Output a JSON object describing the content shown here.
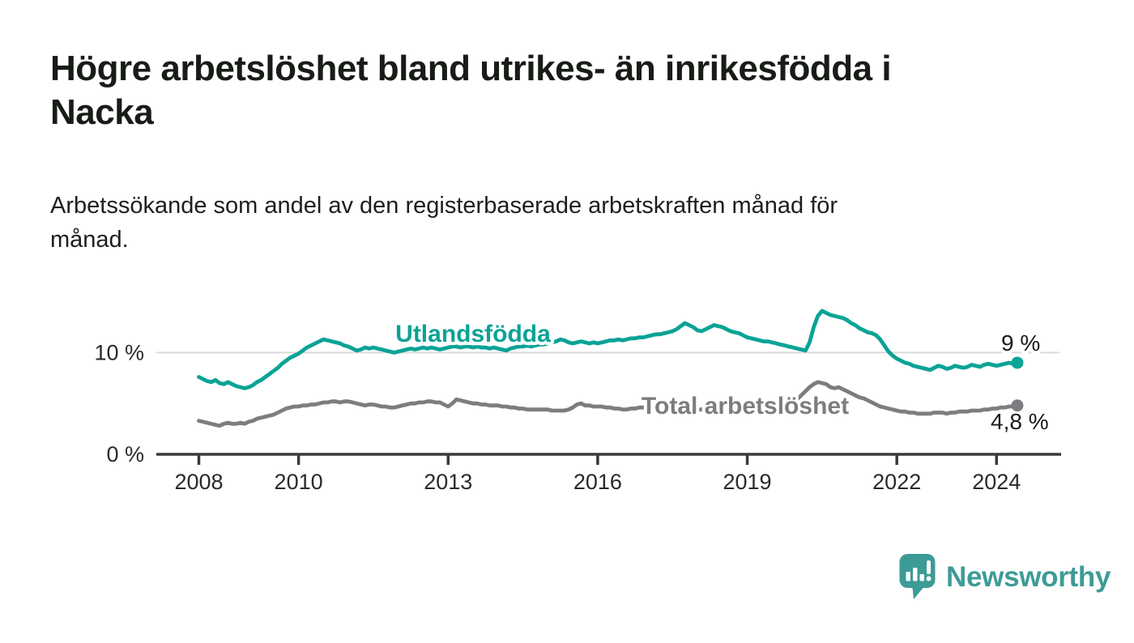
{
  "header": {
    "title": "Högre arbetslöshet bland utrikes- än inrikesfödda i Nacka",
    "title_line1": "Högre arbetslöshet bland utrikes- än inrikesfödda i",
    "title_line2": "Nacka",
    "subtitle": "Arbetssökande som andel av den registerbaserade arbetskraften månad för månad.",
    "subtitle_line1": "Arbetssökande som andel av den registerbaserade arbetskraften månad för",
    "subtitle_line2": "månad."
  },
  "footer": {
    "brand": "Newsworthy",
    "logo_icon": "speech-bubble-bar-chart-icon",
    "brand_color": "#3d9b96"
  },
  "colors": {
    "foreign_born_line": "#0aa396",
    "total_line": "#7d7d81",
    "axis": "#3a3a3a",
    "gridline": "#dbdbdb",
    "tick_label": "#2a2a2a",
    "end_label": "#1a1a1a"
  },
  "chart_data": {
    "type": "line",
    "title": "Högre arbetslöshet bland utrikes- än inrikesfödda i Nacka",
    "subtitle": "Arbetssökande som andel av den registerbaserade arbetskraften månad för månad.",
    "unit": "%",
    "x_interval": "monthly",
    "x_start": {
      "year": 2008,
      "month": 1
    },
    "x_end": {
      "year": 2024,
      "month": 6
    },
    "ylim": [
      0,
      16
    ],
    "grid": "horizontal-10-only",
    "legend_position": "inline-labels",
    "x_ticks": [
      {
        "year": 2008,
        "label": "2008"
      },
      {
        "year": 2010,
        "label": "2010"
      },
      {
        "year": 2013,
        "label": "2013"
      },
      {
        "year": 2016,
        "label": "2016"
      },
      {
        "year": 2019,
        "label": "2019"
      },
      {
        "year": 2022,
        "label": "2022"
      },
      {
        "year": 2024,
        "label": "2024"
      }
    ],
    "y_ticks": [
      {
        "value": 0,
        "label": "0 %"
      },
      {
        "value": 10,
        "label": "10 %"
      }
    ],
    "series": [
      {
        "name": "Utlandsfödda",
        "color": "#0aa396",
        "end_label": "9 %",
        "final_value": 9.0,
        "values": [
          7.6,
          7.4,
          7.2,
          7.1,
          7.3,
          7.0,
          6.9,
          7.1,
          6.9,
          6.7,
          6.6,
          6.5,
          6.6,
          6.8,
          7.1,
          7.3,
          7.6,
          7.9,
          8.2,
          8.5,
          8.9,
          9.2,
          9.5,
          9.7,
          9.9,
          10.2,
          10.5,
          10.7,
          10.9,
          11.1,
          11.3,
          11.2,
          11.1,
          11.0,
          10.9,
          10.7,
          10.6,
          10.4,
          10.2,
          10.3,
          10.5,
          10.4,
          10.5,
          10.4,
          10.3,
          10.2,
          10.1,
          10.0,
          10.1,
          10.2,
          10.3,
          10.4,
          10.3,
          10.4,
          10.5,
          10.4,
          10.5,
          10.4,
          10.3,
          10.4,
          10.5,
          10.6,
          10.6,
          10.5,
          10.6,
          10.6,
          10.5,
          10.6,
          10.5,
          10.5,
          10.4,
          10.5,
          10.4,
          10.3,
          10.2,
          10.4,
          10.5,
          10.6,
          10.6,
          10.7,
          10.6,
          10.7,
          10.8,
          10.8,
          10.9,
          11.0,
          11.1,
          11.3,
          11.2,
          11.0,
          10.9,
          11.0,
          11.1,
          11.0,
          10.9,
          11.0,
          10.9,
          11.0,
          11.1,
          11.2,
          11.2,
          11.3,
          11.2,
          11.3,
          11.4,
          11.4,
          11.5,
          11.5,
          11.6,
          11.7,
          11.8,
          11.8,
          11.9,
          12.0,
          12.1,
          12.3,
          12.6,
          12.9,
          12.7,
          12.5,
          12.2,
          12.1,
          12.3,
          12.5,
          12.7,
          12.6,
          12.5,
          12.3,
          12.1,
          12.0,
          11.9,
          11.7,
          11.5,
          11.4,
          11.3,
          11.2,
          11.1,
          11.1,
          11.0,
          10.9,
          10.8,
          10.7,
          10.6,
          10.5,
          10.4,
          10.3,
          10.2,
          11.0,
          12.5,
          13.6,
          14.1,
          13.9,
          13.7,
          13.6,
          13.5,
          13.4,
          13.2,
          12.9,
          12.7,
          12.4,
          12.2,
          12.0,
          11.9,
          11.7,
          11.3,
          10.7,
          10.1,
          9.7,
          9.4,
          9.2,
          9.0,
          8.9,
          8.7,
          8.6,
          8.5,
          8.4,
          8.3,
          8.5,
          8.7,
          8.6,
          8.4,
          8.5,
          8.7,
          8.6,
          8.5,
          8.6,
          8.8,
          8.7,
          8.6,
          8.8,
          8.9,
          8.8,
          8.7,
          8.8,
          8.9,
          9.0,
          8.9,
          9.0
        ]
      },
      {
        "name": "Total arbetslöshet",
        "color": "#7d7d81",
        "end_label": "4,8 %",
        "final_value": 4.8,
        "values": [
          3.3,
          3.2,
          3.1,
          3.0,
          2.9,
          2.8,
          3.0,
          3.1,
          3.0,
          3.0,
          3.1,
          3.0,
          3.2,
          3.3,
          3.5,
          3.6,
          3.7,
          3.8,
          3.9,
          4.1,
          4.3,
          4.5,
          4.6,
          4.7,
          4.7,
          4.8,
          4.8,
          4.9,
          4.9,
          5.0,
          5.1,
          5.1,
          5.2,
          5.2,
          5.1,
          5.2,
          5.2,
          5.1,
          5.0,
          4.9,
          4.8,
          4.9,
          4.9,
          4.8,
          4.7,
          4.7,
          4.6,
          4.6,
          4.7,
          4.8,
          4.9,
          5.0,
          5.0,
          5.1,
          5.1,
          5.2,
          5.2,
          5.1,
          5.1,
          4.9,
          4.7,
          5.0,
          5.4,
          5.3,
          5.2,
          5.1,
          5.0,
          5.0,
          4.9,
          4.9,
          4.8,
          4.8,
          4.8,
          4.7,
          4.7,
          4.6,
          4.6,
          4.5,
          4.5,
          4.4,
          4.4,
          4.4,
          4.4,
          4.4,
          4.4,
          4.3,
          4.3,
          4.3,
          4.3,
          4.4,
          4.6,
          4.9,
          5.0,
          4.8,
          4.8,
          4.7,
          4.7,
          4.7,
          4.6,
          4.6,
          4.5,
          4.5,
          4.4,
          4.4,
          4.5,
          4.5,
          4.6,
          4.6,
          4.6,
          4.5,
          4.5,
          4.6,
          4.6,
          4.5,
          4.5,
          4.6,
          4.6,
          4.5,
          4.5,
          4.4,
          4.4,
          4.4,
          4.5,
          4.5,
          4.4,
          4.4,
          4.3,
          4.3,
          4.4,
          4.4,
          4.5,
          4.5,
          4.5,
          4.5,
          4.6,
          4.6,
          4.6,
          4.7,
          4.7,
          4.6,
          4.7,
          4.7,
          4.8,
          5.0,
          5.4,
          5.8,
          6.2,
          6.6,
          6.9,
          7.1,
          7.0,
          6.9,
          6.6,
          6.5,
          6.6,
          6.4,
          6.2,
          6.0,
          5.8,
          5.6,
          5.5,
          5.3,
          5.1,
          4.9,
          4.7,
          4.6,
          4.5,
          4.4,
          4.3,
          4.2,
          4.2,
          4.1,
          4.1,
          4.0,
          4.0,
          4.0,
          4.0,
          4.1,
          4.1,
          4.1,
          4.0,
          4.1,
          4.1,
          4.2,
          4.2,
          4.2,
          4.3,
          4.3,
          4.3,
          4.4,
          4.4,
          4.5,
          4.5,
          4.6,
          4.6,
          4.7,
          4.7,
          4.8
        ]
      }
    ]
  }
}
